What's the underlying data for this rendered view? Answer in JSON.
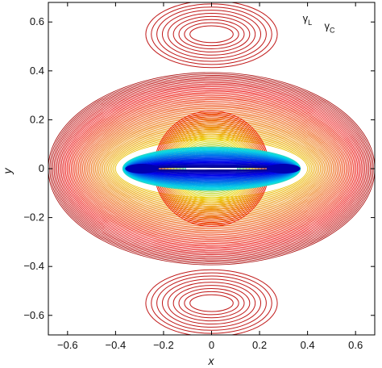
{
  "chart_data": {
    "type": "contour",
    "xlabel": "x",
    "ylabel": "y",
    "xlim": [
      -0.68,
      0.68
    ],
    "ylim": [
      -0.68,
      0.68
    ],
    "xticks": [
      -0.6,
      -0.4,
      -0.2,
      0,
      0.2,
      0.4,
      0.6
    ],
    "yticks": [
      -0.6,
      -0.4,
      -0.2,
      0,
      0.2,
      0.4,
      0.6
    ],
    "xtick_labels": [
      "−0.6",
      "−0.4",
      "−0.2",
      "0",
      "0.2",
      "0.4",
      "0.6"
    ],
    "ytick_labels": [
      "−0.6",
      "−0.4",
      "−0.2",
      "0",
      "0.2",
      "0.4",
      "0.6"
    ],
    "grid": false,
    "colormap": "jet",
    "colors": {
      "low": "#0000b0",
      "mid": "#00c8ff",
      "high": "#b00000"
    },
    "annotations": [
      {
        "symbol": "γ",
        "subscript": "L",
        "x": 0.38,
        "y": 0.6
      },
      {
        "symbol": "γ",
        "subscript": "C",
        "x": 0.47,
        "y": 0.57
      }
    ],
    "features": {
      "upper_lobe_center": [
        0,
        0.55
      ],
      "lower_lobe_center": [
        0,
        -0.55
      ],
      "central_disc_radius": 0.24,
      "inner_slit_half_length": 0.37,
      "outer_boundary_radius": 0.68
    }
  }
}
